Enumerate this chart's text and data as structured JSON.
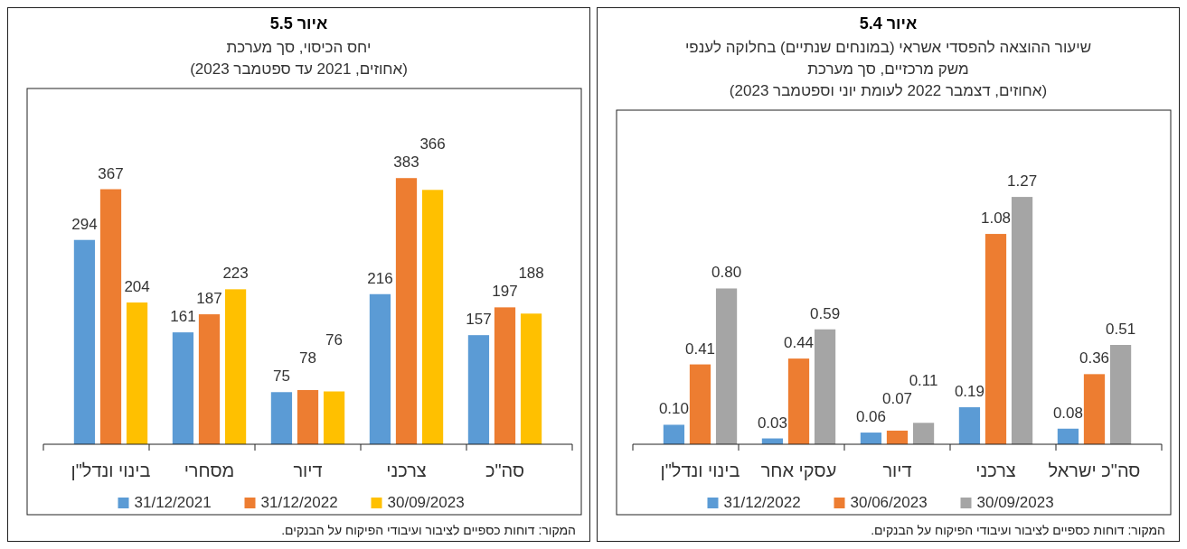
{
  "chart_data": [
    {
      "type": "bar",
      "title": "איור 5.4",
      "subtitle": "שיעור ההוצאה להפסדי אשראי (במונחים שנתיים) בחלוקה לענפי\nמשק מרכזיים, סך מערכת\n(אחוזים, דצמבר 2022 לעומת יוני וספטמבר 2023)",
      "categories": [
        "בינוי ונדל\"ן",
        "עסקי אחר",
        "דיור",
        "צרכני",
        "סה\"כ ישראל"
      ],
      "series": [
        {
          "name": "31/12/2022",
          "color": "#5b9bd5",
          "values": [
            0.1,
            0.03,
            0.06,
            0.19,
            0.08
          ],
          "value_labels": [
            "0.10",
            "0.03",
            "0.06",
            "0.19",
            "0.08"
          ]
        },
        {
          "name": "30/06/2023",
          "color": "#ed7d31",
          "values": [
            0.41,
            0.44,
            0.07,
            1.08,
            0.36
          ],
          "value_labels": [
            "0.41",
            "0.44",
            "0.07",
            "1.08",
            "0.36"
          ]
        },
        {
          "name": "30/09/2023",
          "color": "#a5a5a5",
          "values": [
            0.8,
            0.59,
            0.11,
            1.27,
            0.51
          ],
          "value_labels": [
            "0.80",
            "0.59",
            "0.11",
            "1.27",
            "0.51"
          ]
        }
      ],
      "legend": "bottom",
      "annotations": [
        "המקור: דוחות כספיים לציבור ועיבודי הפיקוח על הבנקים."
      ]
    },
    {
      "type": "bar",
      "title": "איור 5.5",
      "subtitle": "יחס הכיסוי, סך מערכת\n(אחוזים, 2021 עד ספטמבר 2023)",
      "categories": [
        "בינוי ונדל\"ן",
        "מסחרי",
        "דיור",
        "צרכני",
        "סה\"כ"
      ],
      "series": [
        {
          "name": "31/12/2021",
          "color": "#5b9bd5",
          "values": [
            294,
            161,
            75,
            216,
            157
          ]
        },
        {
          "name": "31/12/2022",
          "color": "#ed7d31",
          "values": [
            367,
            187,
            78,
            383,
            197
          ]
        },
        {
          "name": "30/09/2023",
          "color": "#ffc000",
          "values": [
            204,
            223,
            76,
            366,
            188
          ]
        }
      ],
      "data_labels": true,
      "legend": "bottom",
      "annotations": [
        "המקור: דוחות כספיים לציבור ועיבודי הפיקוח על הבנקים."
      ]
    }
  ]
}
